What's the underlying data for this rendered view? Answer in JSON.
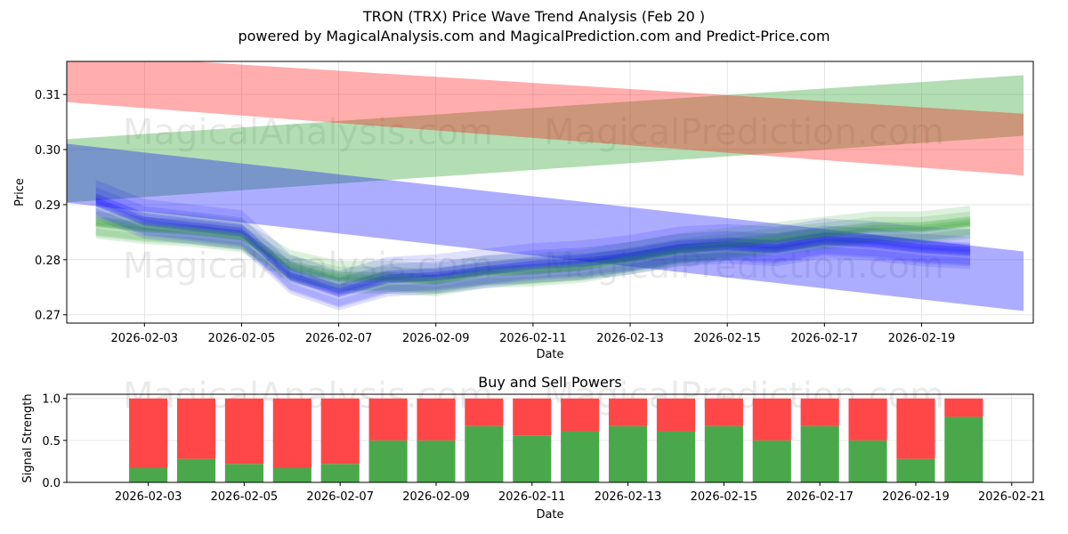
{
  "header": {
    "title": "TRON (TRX) Price Wave Trend Analysis (Feb 20 )",
    "subtitle": "powered by MagicalAnalysis.com and MagicalPrediction.com and Predict-Price.com"
  },
  "watermarks": [
    "MagicalAnalysis.com",
    "MagicalPrediction.com"
  ],
  "colors": {
    "up_band": "#2ca02c",
    "down_band": "#ff0000",
    "wave": "#0000ff",
    "buy": "#4aa84a",
    "sell": "#ff4747"
  },
  "chart_data": [
    {
      "type": "area",
      "title": "",
      "xlabel": "Date",
      "ylabel": "Price",
      "x_range": [
        "2026-02-01",
        "2026-02-21"
      ],
      "ylim": [
        0.2685,
        0.316
      ],
      "x_ticks": [
        "2026-02-03",
        "2026-02-05",
        "2026-02-07",
        "2026-02-09",
        "2026-02-11",
        "2026-02-13",
        "2026-02-15",
        "2026-02-17",
        "2026-02-19"
      ],
      "y_ticks": [
        0.27,
        0.28,
        0.29,
        0.3,
        0.31
      ],
      "y_tick_labels": [
        "0.27",
        "0.28",
        "0.29",
        "0.30",
        "0.31"
      ],
      "grid": true,
      "bands": [
        {
          "name": "upper trend (red)",
          "color": "#ff0000",
          "x": [
            "2026-02-01",
            "2026-02-20"
          ],
          "top": [
            0.3175,
            0.3065
          ],
          "bottom": [
            0.3087,
            0.2953
          ]
        },
        {
          "name": "rising trend (green)",
          "color": "#2ca02c",
          "x": [
            "2026-02-01",
            "2026-02-20"
          ],
          "top": [
            0.3018,
            0.3135
          ],
          "bottom": [
            0.2903,
            0.3025
          ]
        },
        {
          "name": "falling trend (blue)",
          "color": "#0000ff",
          "x": [
            "2026-02-01",
            "2026-02-20"
          ],
          "top": [
            0.3012,
            0.2815
          ],
          "bottom": [
            0.2905,
            0.2707
          ]
        }
      ],
      "wave_series": {
        "dates": [
          "2026-02-02",
          "2026-02-03",
          "2026-02-04",
          "2026-02-05",
          "2026-02-06",
          "2026-02-07",
          "2026-02-08",
          "2026-02-09",
          "2026-02-10",
          "2026-02-11",
          "2026-02-12",
          "2026-02-13",
          "2026-02-14",
          "2026-02-15",
          "2026-02-16",
          "2026-02-17",
          "2026-02-18",
          "2026-02-19",
          "2026-02-20"
        ],
        "green_center": [
          0.2865,
          0.2855,
          0.285,
          0.284,
          0.2785,
          0.2765,
          0.2765,
          0.276,
          0.2775,
          0.2778,
          0.2785,
          0.28,
          0.2815,
          0.2825,
          0.2835,
          0.2845,
          0.2855,
          0.2855,
          0.2865
        ],
        "blue_center": [
          0.2905,
          0.287,
          0.286,
          0.285,
          0.277,
          0.274,
          0.2765,
          0.277,
          0.278,
          0.279,
          0.2795,
          0.2805,
          0.282,
          0.2825,
          0.282,
          0.2835,
          0.283,
          0.282,
          0.2815
        ]
      }
    },
    {
      "type": "bar",
      "title": "Buy and Sell Powers",
      "xlabel": "Date",
      "ylabel": "Signal Strength",
      "x_range": [
        "2026-02-01",
        "2026-02-21"
      ],
      "x_ticks": [
        "2026-02-03",
        "2026-02-05",
        "2026-02-07",
        "2026-02-09",
        "2026-02-11",
        "2026-02-13",
        "2026-02-15",
        "2026-02-17",
        "2026-02-19",
        "2026-02-21"
      ],
      "ylim": [
        0,
        1.05
      ],
      "y_ticks": [
        0,
        0.5,
        1
      ],
      "y_tick_labels": [
        "0.0",
        "0.5",
        "1.0"
      ],
      "grid": true,
      "categories": [
        "2026-02-03",
        "2026-02-04",
        "2026-02-05",
        "2026-02-06",
        "2026-02-07",
        "2026-02-08",
        "2026-02-09",
        "2026-02-10",
        "2026-02-11",
        "2026-02-12",
        "2026-02-13",
        "2026-02-14",
        "2026-02-15",
        "2026-02-16",
        "2026-02-17",
        "2026-02-18",
        "2026-02-19",
        "2026-02-20"
      ],
      "series": [
        {
          "name": "Buy",
          "color": "#4aa84a",
          "values": [
            0.17,
            0.28,
            0.22,
            0.17,
            0.22,
            0.5,
            0.5,
            0.67,
            0.56,
            0.61,
            0.67,
            0.61,
            0.67,
            0.5,
            0.67,
            0.5,
            0.28,
            0.78
          ]
        },
        {
          "name": "Sell",
          "color": "#ff4747",
          "values": [
            0.83,
            0.72,
            0.78,
            0.83,
            0.78,
            0.5,
            0.5,
            0.33,
            0.44,
            0.39,
            0.33,
            0.39,
            0.33,
            0.5,
            0.33,
            0.5,
            0.72,
            0.22
          ]
        }
      ]
    }
  ]
}
